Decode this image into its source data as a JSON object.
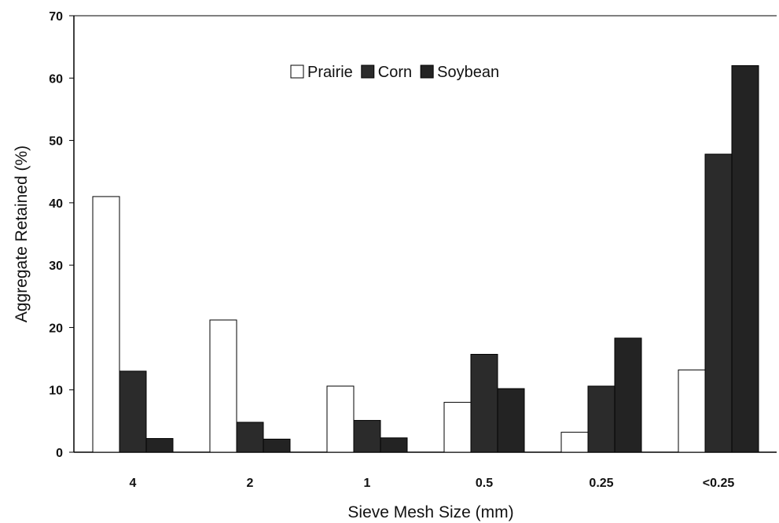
{
  "chart_data": {
    "type": "bar",
    "title": "",
    "xlabel": "Sieve Mesh Size (mm)",
    "ylabel": "Aggregate Retained (%)",
    "ylim": [
      0,
      70
    ],
    "yticks": [
      0,
      10,
      20,
      30,
      40,
      50,
      60,
      70
    ],
    "categories": [
      "4",
      "2",
      "1",
      "0.5",
      "0.25",
      "<0.25"
    ],
    "series": [
      {
        "name": "Prairie",
        "values": [
          41,
          21.2,
          10.6,
          8,
          3.2,
          13.2
        ]
      },
      {
        "name": "Corn",
        "values": [
          13,
          4.8,
          5.1,
          15.7,
          10.6,
          47.8
        ]
      },
      {
        "name": "Soybean",
        "values": [
          2.2,
          2.1,
          2.3,
          10.2,
          18.3,
          62
        ]
      }
    ],
    "legend_position": "top-center",
    "grid": false,
    "colors": {
      "Prairie": "#ffffff",
      "Corn": "#2b2b2b",
      "Soybean": "#232323",
      "axis": "#000000"
    }
  }
}
